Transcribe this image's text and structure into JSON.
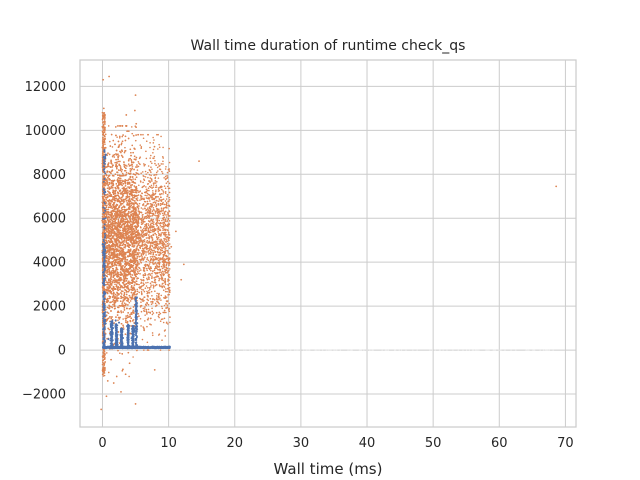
{
  "chart_data": {
    "type": "scatter",
    "title": "Wall time duration of runtime check_qs",
    "xlabel": "Wall time (ms)",
    "ylabel": "",
    "xlim": [
      -3.4,
      71.6
    ],
    "ylim": [
      -3500,
      13200
    ],
    "x_ticks": [
      0,
      10,
      20,
      30,
      40,
      50,
      60,
      70
    ],
    "x_tick_labels": [
      "0",
      "10",
      "20",
      "30",
      "40",
      "50",
      "60",
      "70"
    ],
    "y_ticks": [
      -2000,
      0,
      2000,
      4000,
      6000,
      8000,
      10000,
      12000
    ],
    "y_tick_labels": [
      "−2000",
      "0",
      "2000",
      "4000",
      "6000",
      "8000",
      "10000",
      "12000"
    ],
    "grid": true,
    "legend": "none",
    "colors": {
      "series_1": "#4c72b0",
      "series_2": "#dd8452",
      "grid": "#cccccc",
      "spine": "#cccccc",
      "text": "#262626"
    },
    "series": [
      {
        "color": "#dd8452",
        "note_points": [
          [
            0.1,
            12300
          ],
          [
            0.2,
            11000
          ],
          [
            0.0,
            10800
          ],
          [
            1.0,
            12450
          ],
          [
            3.6,
            10700
          ],
          [
            5.0,
            11600
          ],
          [
            4.9,
            10900
          ],
          [
            5.1,
            10300
          ],
          [
            14.6,
            8600
          ],
          [
            68.6,
            7450
          ],
          [
            12.3,
            3900
          ],
          [
            11.9,
            3200
          ],
          [
            11.1,
            5400
          ],
          [
            10.4,
            4700
          ],
          [
            9.6,
            6500
          ],
          [
            10.2,
            1500
          ],
          [
            8.2,
            1700
          ],
          [
            8.0,
            7700
          ],
          [
            7.1,
            8200
          ],
          [
            -0.2,
            -2700
          ],
          [
            0.6,
            -2100
          ],
          [
            5.0,
            -2450
          ],
          [
            7.9,
            -900
          ],
          [
            2.8,
            -1900
          ],
          [
            1.7,
            -1500
          ],
          [
            3.5,
            -1100
          ],
          [
            0.8,
            -1400
          ],
          [
            9.4,
            1800
          ],
          [
            6.3,
            900
          ],
          [
            4.1,
            -600
          ]
        ]
      },
      {
        "color": "#4c72b0",
        "note_points": [
          [
            0.3,
            9100
          ],
          [
            0.5,
            8900
          ],
          [
            0.4,
            7200
          ],
          [
            0.2,
            8200
          ],
          [
            5.2,
            2400
          ],
          [
            5.1,
            1900
          ],
          [
            5.0,
            1500
          ],
          [
            2.0,
            1350
          ],
          [
            2.5,
            1250
          ],
          [
            3.9,
            1150
          ],
          [
            4.6,
            1100
          ],
          [
            1.6,
            1000
          ],
          [
            3.0,
            900
          ],
          [
            1.2,
            700
          ],
          [
            0.9,
            500
          ]
        ]
      }
    ]
  }
}
